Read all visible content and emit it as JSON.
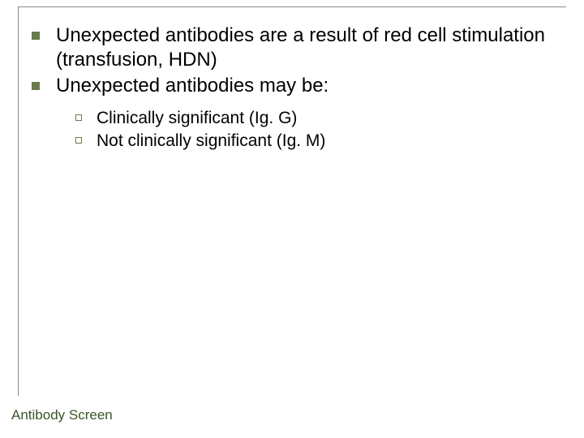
{
  "colors": {
    "bullet_fill": "#677c4d",
    "bullet_outline": "#677c4d",
    "text": "#000000",
    "footer_text": "#3b5425",
    "border": "#888888",
    "background": "#ffffff"
  },
  "typography": {
    "l1_fontsize": 24,
    "l2_fontsize": 21,
    "footer_fontsize": 17,
    "font_family": "Arial"
  },
  "bullets": {
    "l1": [
      "Unexpected antibodies are a result of red cell stimulation (transfusion, HDN)",
      "Unexpected antibodies may be:"
    ],
    "l2": [
      "Clinically significant (Ig. G)",
      "Not clinically significant (Ig. M)"
    ]
  },
  "footer": "Antibody Screen"
}
